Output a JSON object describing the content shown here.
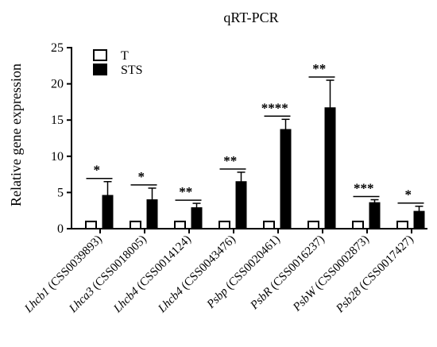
{
  "chart_data": {
    "type": "bar",
    "title": "qRT-PCR",
    "ylabel": "Relative gene expression",
    "ylim": [
      0,
      25
    ],
    "yticks": [
      0,
      5,
      10,
      15,
      20,
      25
    ],
    "grid": false,
    "legend_position": "top-left",
    "categories": [
      {
        "gene": "Lhcb1",
        "id": " (CSS0039893)"
      },
      {
        "gene": "Lhca3",
        "id": " (CSS0018005)"
      },
      {
        "gene": "Lhcb4",
        "id": " (CSS0014124)"
      },
      {
        "gene": "Lhcb4",
        "id": " (CSS0043476)"
      },
      {
        "gene": "Psbp",
        "id": " (CSS0020461)"
      },
      {
        "gene": "PsbR",
        "id": " (CSS0016237)"
      },
      {
        "gene": "PsbW",
        "id": " (CSS0002873)"
      },
      {
        "gene": "Psb28",
        "id": " (CSS0017427)"
      }
    ],
    "series": [
      {
        "name": "T",
        "color": "#ffffff",
        "values": [
          1,
          1,
          1,
          1,
          1,
          1,
          1,
          1
        ]
      },
      {
        "name": "STS",
        "color": "#000000",
        "values": [
          4.6,
          4.0,
          2.9,
          6.5,
          13.7,
          16.7,
          3.6,
          2.4
        ],
        "error": [
          1.9,
          1.6,
          0.6,
          1.3,
          1.4,
          3.8,
          0.4,
          0.7
        ]
      }
    ],
    "significance": [
      "*",
      "*",
      "**",
      "**",
      "****",
      "**",
      "***",
      "*"
    ]
  }
}
